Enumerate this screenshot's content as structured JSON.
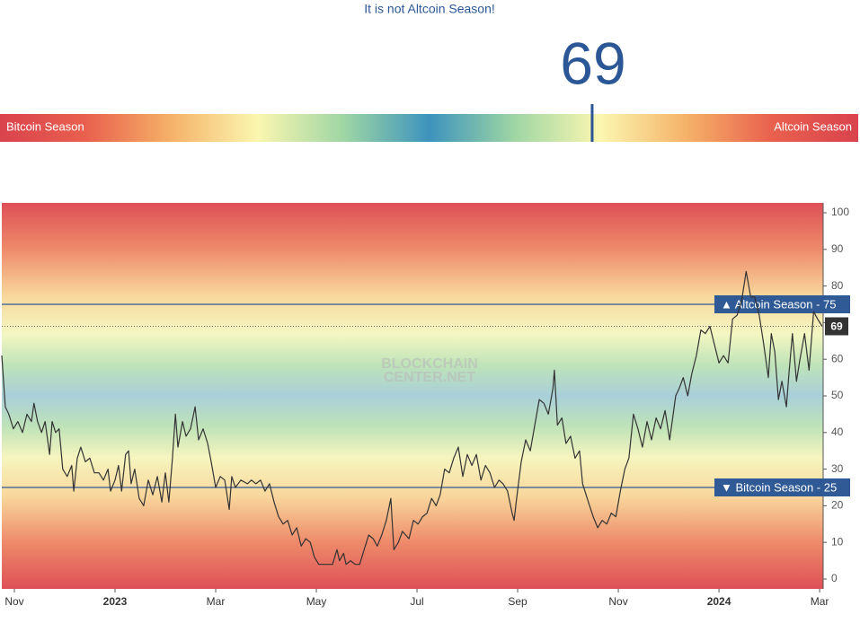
{
  "gauge": {
    "headline": "It is not Altcoin Season!",
    "value": 69,
    "range": [
      0,
      100
    ],
    "left_label": "Bitcoin Season",
    "right_label": "Altcoin Season"
  },
  "chart_data": {
    "type": "line",
    "color": "#333333",
    "x": [
      -0.25,
      -0.18,
      -0.11,
      -0.02,
      0.07,
      0.16,
      0.25,
      0.34,
      0.39,
      0.46,
      0.54,
      0.61,
      0.7,
      0.75,
      0.82,
      0.89,
      0.96,
      1.05,
      1.14,
      1.18,
      1.25,
      1.32,
      1.41,
      1.5,
      1.59,
      1.68,
      1.77,
      1.86,
      1.91,
      2.0,
      2.07,
      2.13,
      2.21,
      2.27,
      2.32,
      2.39,
      2.48,
      2.57,
      2.66,
      2.75,
      2.84,
      2.93,
      3.0,
      3.07,
      3.14,
      3.2,
      3.25,
      3.34,
      3.41,
      3.5,
      3.59,
      3.66,
      3.75,
      3.84,
      3.91,
      4.0,
      4.09,
      4.18,
      4.27,
      4.32,
      4.39,
      4.5,
      4.63,
      4.71,
      4.8,
      4.89,
      4.98,
      5.07,
      5.16,
      5.25,
      5.34,
      5.43,
      5.52,
      5.61,
      5.7,
      5.79,
      5.88,
      5.96,
      6.05,
      6.14,
      6.23,
      6.32,
      6.41,
      6.46,
      6.54,
      6.59,
      6.68,
      6.77,
      6.86,
      6.95,
      7.04,
      7.13,
      7.21,
      7.3,
      7.39,
      7.48,
      7.54,
      7.63,
      7.71,
      7.84,
      7.93,
      8.02,
      8.11,
      8.2,
      8.29,
      8.38,
      8.46,
      8.55,
      8.64,
      8.73,
      8.82,
      8.91,
      9.0,
      9.09,
      9.18,
      9.27,
      9.36,
      9.45,
      9.54,
      9.63,
      9.71,
      9.8,
      9.89,
      9.93,
      9.98,
      10.07,
      10.16,
      10.25,
      10.34,
      10.43,
      10.52,
      10.61,
      10.7,
      10.73,
      10.79,
      10.88,
      10.96,
      11.05,
      11.14,
      11.23,
      11.29,
      11.36,
      11.43,
      11.5,
      11.59,
      11.68,
      11.77,
      11.86,
      11.95,
      12.04,
      12.13,
      12.21,
      12.3,
      12.39,
      12.48,
      12.57,
      12.66,
      12.75,
      12.84,
      12.93,
      13.02,
      13.07,
      13.14,
      13.21,
      13.29,
      13.38,
      13.46,
      13.55,
      13.64,
      13.73,
      13.82,
      13.91,
      14.0,
      14.09,
      14.18,
      14.27,
      14.36,
      14.45,
      14.54,
      14.63,
      14.71,
      14.8,
      14.89,
      14.98,
      15.04,
      15.11,
      15.18,
      15.25,
      15.34,
      15.39,
      15.46,
      15.54,
      15.61,
      15.7,
      15.79,
      15.88,
      15.96,
      16.05
    ],
    "values": [
      61,
      47,
      45,
      41,
      43,
      40,
      45,
      43,
      48,
      43,
      40,
      43,
      34,
      43,
      40,
      41,
      30,
      28,
      31,
      24,
      33,
      36,
      32,
      33,
      29,
      29,
      27,
      30,
      24,
      27,
      31,
      24,
      34,
      35,
      26,
      30,
      22,
      20,
      27,
      23,
      28,
      21,
      29,
      21,
      33,
      45,
      36,
      43,
      39,
      41,
      47,
      38,
      41,
      37,
      32,
      25,
      28,
      27,
      19,
      28,
      25,
      27,
      26,
      27,
      26,
      27,
      24,
      26,
      21,
      17,
      15,
      16,
      12,
      14,
      9,
      11,
      10,
      6,
      4,
      4,
      4,
      4,
      8,
      5,
      7,
      4,
      5,
      4,
      4,
      8,
      12,
      11,
      9,
      12,
      16,
      22,
      8,
      10,
      13,
      11,
      16,
      15,
      17,
      18,
      22,
      20,
      23,
      30,
      29,
      33,
      36,
      28,
      34,
      31,
      34,
      27,
      31,
      29,
      25,
      27,
      26,
      24,
      18,
      16,
      22,
      32,
      38,
      35,
      42,
      49,
      48,
      45,
      52,
      57,
      42,
      44,
      37,
      39,
      33,
      35,
      26,
      23,
      20,
      17,
      14,
      16,
      15,
      18,
      17,
      24,
      30,
      33,
      45,
      41,
      36,
      43,
      38,
      44,
      41,
      46,
      38,
      43,
      50,
      52,
      55,
      50,
      56,
      61,
      68,
      67,
      69,
      64,
      59,
      61,
      59,
      71,
      72,
      76,
      84,
      77,
      77,
      72,
      64,
      55,
      67,
      62,
      49,
      54,
      47,
      56,
      67,
      54,
      60,
      67,
      57,
      73,
      71,
      69
    ],
    "xlim": [
      -0.25,
      16.07
    ],
    "xticks": [
      {
        "value": 0,
        "label": "Nov"
      },
      {
        "value": 2,
        "label": "2023"
      },
      {
        "value": 4,
        "label": "Mar"
      },
      {
        "value": 6,
        "label": "May"
      },
      {
        "value": 8,
        "label": "Jul"
      },
      {
        "value": 10,
        "label": "Sep"
      },
      {
        "value": 12,
        "label": "Nov"
      },
      {
        "value": 14,
        "label": "2024"
      },
      {
        "value": 16,
        "label": "Mar"
      }
    ],
    "ylim": [
      -2.7,
      102.7
    ],
    "yticks": [
      0,
      10,
      20,
      30,
      40,
      50,
      60,
      70,
      80,
      90,
      100
    ],
    "reference_lines": [
      {
        "value": 75,
        "label": "▲ Altcoin Season - 75"
      },
      {
        "value": 25,
        "label": "▼ Bitcoin Season - 25"
      }
    ],
    "current_value": 69,
    "watermark": [
      "BLOCKCHAIN",
      "CENTER.NET"
    ]
  }
}
